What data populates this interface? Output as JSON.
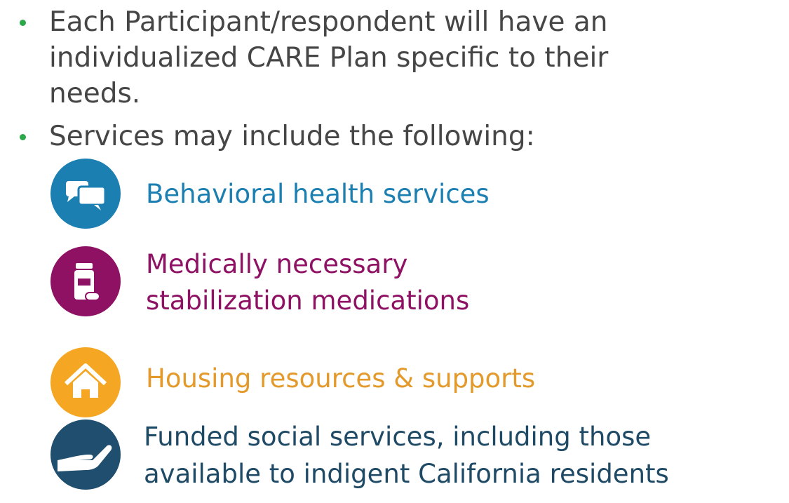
{
  "bullets": [
    {
      "lines": [
        "Each Participant/respondent will have an",
        "individualized CARE Plan specific to their",
        "needs."
      ]
    },
    {
      "lines": [
        "Services may include the following:"
      ]
    }
  ],
  "services": [
    {
      "lines": [
        "Behavioral health services"
      ]
    },
    {
      "lines": [
        "Medically necessary",
        "stabilization medications"
      ]
    },
    {
      "lines": [
        "Housing resources & supports"
      ]
    },
    {
      "lines": [
        "Funded social services, including those",
        "available to indigent California residents"
      ]
    }
  ]
}
